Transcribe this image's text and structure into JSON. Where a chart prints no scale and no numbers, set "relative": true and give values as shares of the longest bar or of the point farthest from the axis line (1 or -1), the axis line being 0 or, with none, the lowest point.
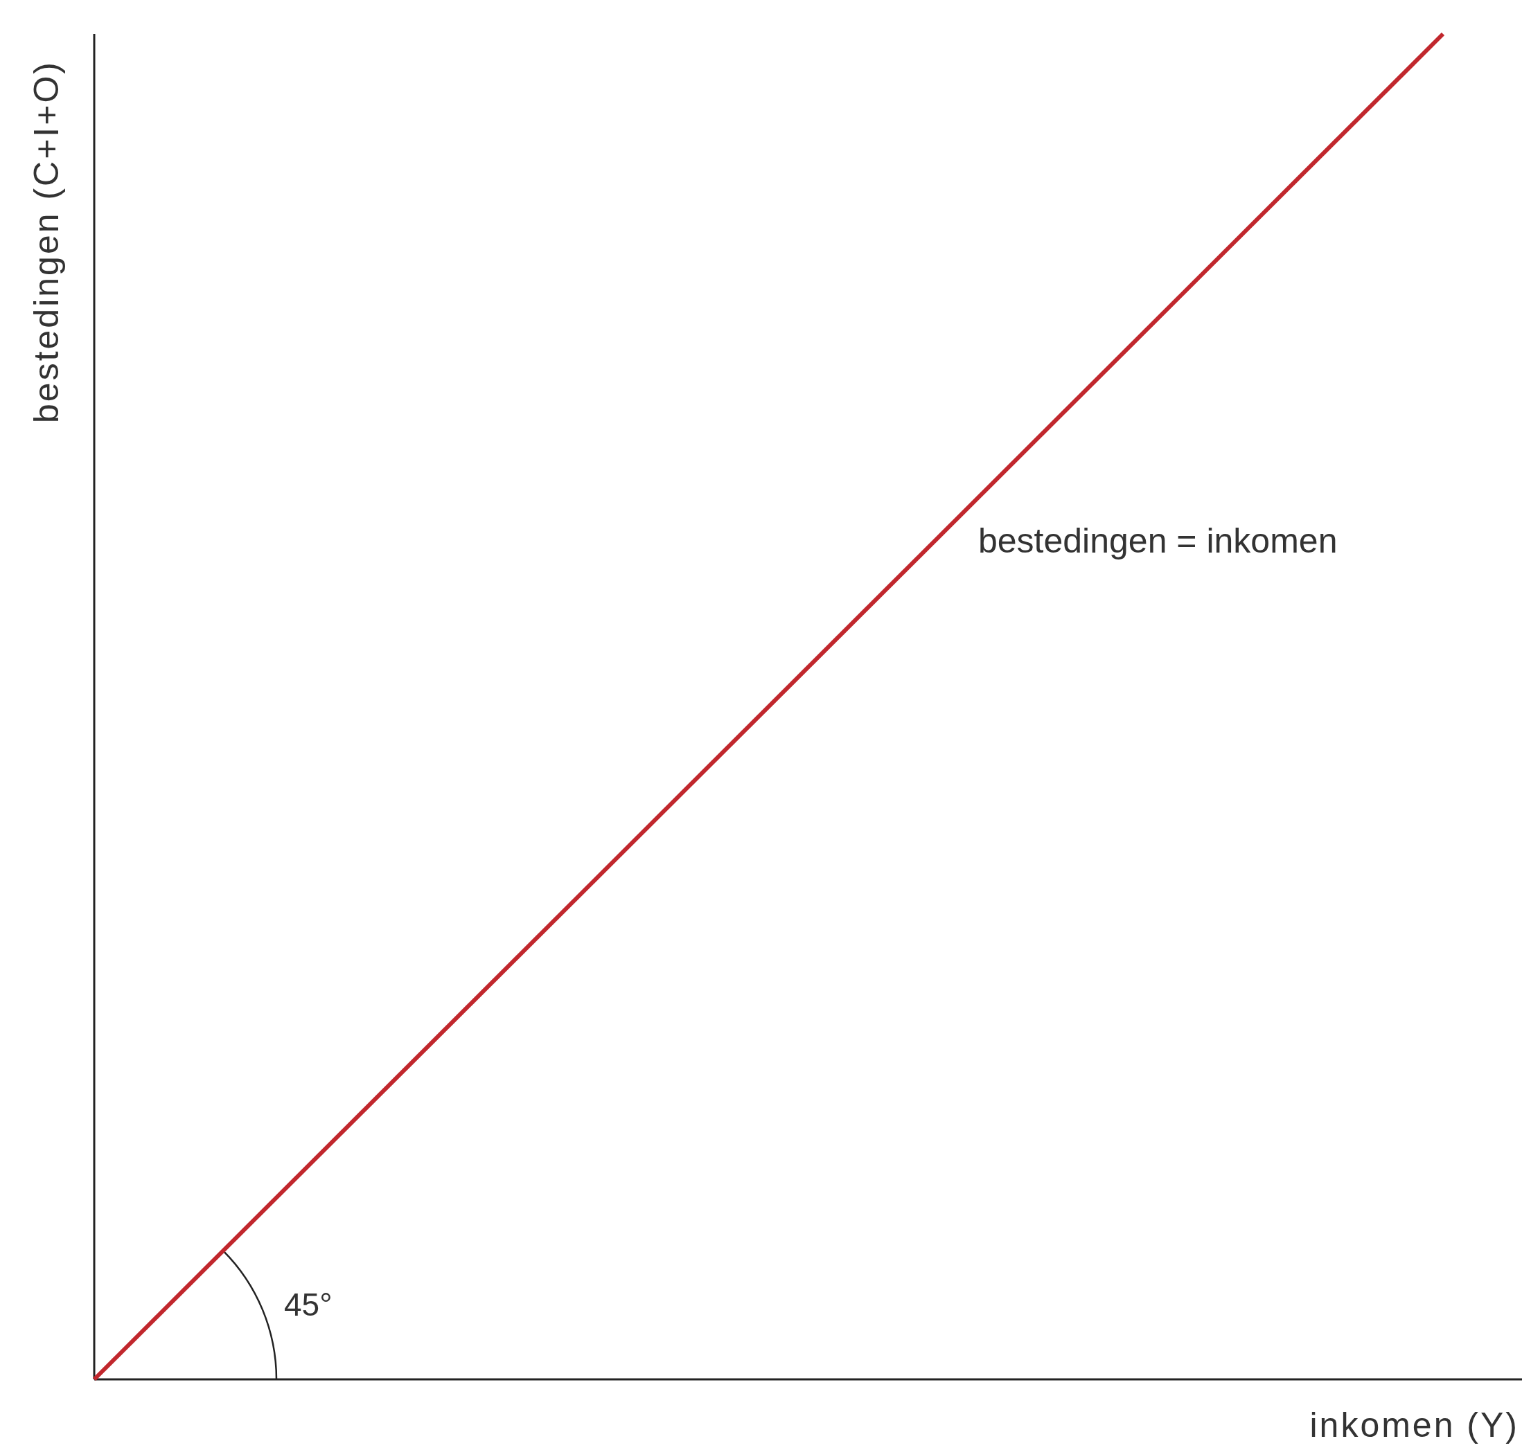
{
  "chart_data": {
    "type": "line",
    "relative": true,
    "xlabel": "inkomen (Y)",
    "ylabel": "bestedingen (C+I+O)",
    "categories": [
      null,
      null
    ],
    "series": [
      {
        "color": "#c1272d",
        "values": [
          0,
          1
        ]
      }
    ],
    "annotations": [
      "bestedingen = inkomen",
      "45°"
    ],
    "marker": "none",
    "line_style": "solid"
  }
}
